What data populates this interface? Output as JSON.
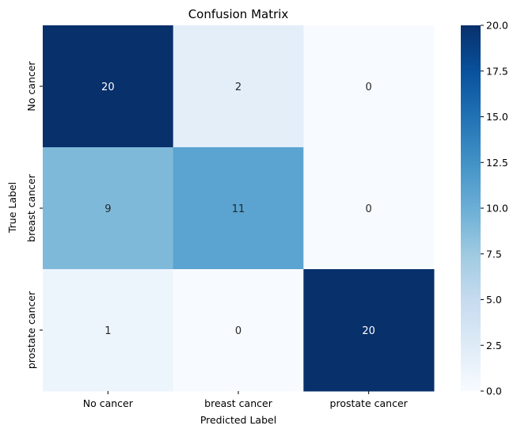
{
  "chart_data": {
    "type": "heatmap",
    "title": "Confusion Matrix",
    "xlabel": "Predicted Label",
    "ylabel": "True Label",
    "x_categories": [
      "No cancer",
      "breast cancer",
      "prostate cancer"
    ],
    "y_categories": [
      "No cancer",
      "breast cancer",
      "prostate cancer"
    ],
    "values": [
      [
        20,
        2,
        0
      ],
      [
        9,
        11,
        0
      ],
      [
        1,
        0,
        20
      ]
    ],
    "colormap": "Blues",
    "colorbar": {
      "min": 0.0,
      "max": 20.0,
      "ticks": [
        "0.0",
        "2.5",
        "5.0",
        "7.5",
        "10.0",
        "12.5",
        "15.0",
        "17.5",
        "20.0"
      ]
    },
    "annotations": true
  }
}
